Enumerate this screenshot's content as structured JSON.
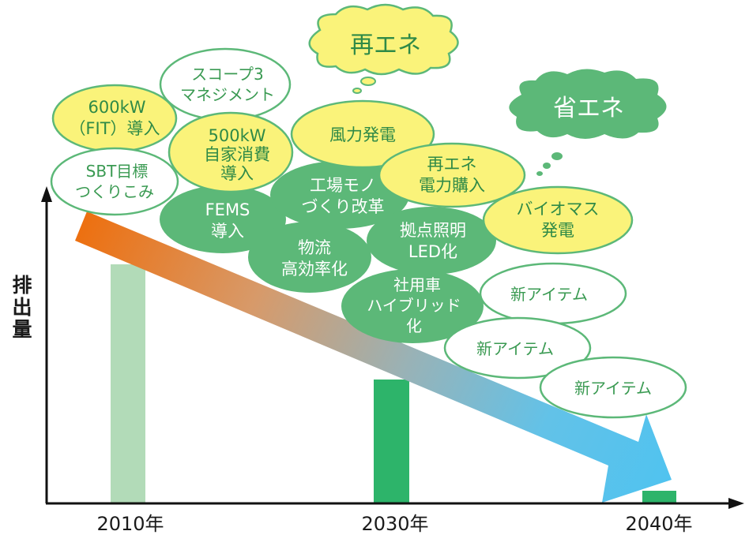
{
  "axis": {
    "y_label_chars": [
      "排",
      "出",
      "量"
    ],
    "x_labels": [
      "2010年",
      "2030年",
      "2040年"
    ]
  },
  "clouds": {
    "renewable": "再エネ",
    "saving": "省エネ"
  },
  "bubbles": {
    "scope3": [
      "スコープ3",
      "マネジメント"
    ],
    "fit600": [
      "600kW",
      "（FIT）導入"
    ],
    "own500": [
      "500kW",
      "自家消費",
      "導入"
    ],
    "wind": [
      "風力発電"
    ],
    "sbt": [
      "SBT目標",
      "つくりこみ"
    ],
    "fems": [
      "FEMS",
      "導入"
    ],
    "factory": [
      "工場モノ",
      "づくり改革"
    ],
    "re_purchase": [
      "再エネ",
      "電力購入"
    ],
    "logistics": [
      "物流",
      "高効率化"
    ],
    "led": [
      "拠点照明",
      "LED化"
    ],
    "biomass": [
      "バイオマス",
      "発電"
    ],
    "vehicle": [
      "社用車",
      "ハイブリッド",
      "化"
    ],
    "new1": [
      "新アイテム"
    ],
    "new2": [
      "新アイテム"
    ],
    "new3": [
      "新アイテム"
    ]
  },
  "colors": {
    "green": "#5cb878",
    "yellow": "#faf37a",
    "bar_light": "#b2dbb8",
    "bar_dark": "#2db46a",
    "arrow_start": "#ee7a12",
    "arrow_end": "#4fc3f0"
  }
}
